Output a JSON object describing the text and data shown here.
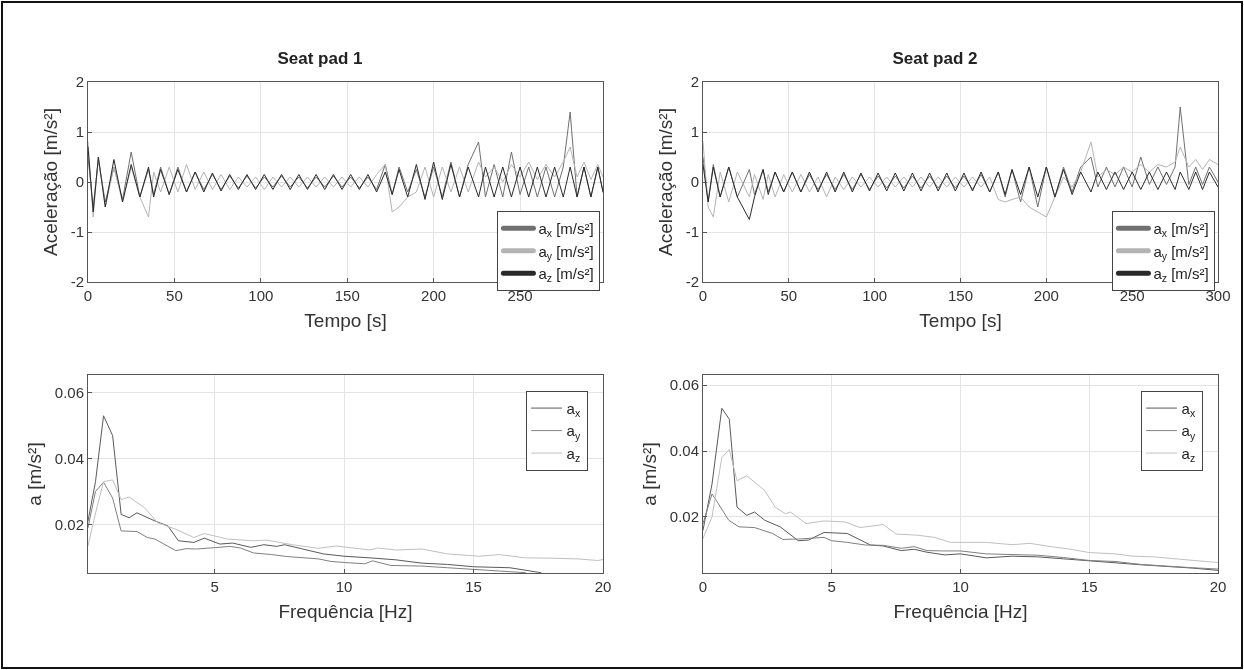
{
  "chart_data": [
    {
      "type": "line",
      "title": "Seat pad 1",
      "xlabel": "Tempo [s]",
      "ylabel": "Aceleração [m/s²]",
      "xlim": [
        0,
        298
      ],
      "xticks": [
        0,
        50,
        100,
        150,
        200,
        250
      ],
      "ylim": [
        -2,
        2
      ],
      "yticks": [
        -2,
        -1,
        0,
        1,
        2
      ],
      "grid": true,
      "legend": "right",
      "line_style": "solid",
      "x": [
        0,
        3,
        6,
        10,
        15,
        20,
        25,
        30,
        35,
        38,
        42,
        47,
        52,
        57,
        62,
        67,
        72,
        77,
        82,
        87,
        92,
        97,
        102,
        107,
        112,
        117,
        122,
        127,
        132,
        137,
        142,
        147,
        152,
        157,
        162,
        167,
        172,
        176,
        180,
        185,
        190,
        195,
        200,
        205,
        210,
        215,
        220,
        226,
        230,
        235,
        240,
        245,
        250,
        255,
        260,
        265,
        270,
        275,
        279,
        283,
        287,
        291,
        295,
        298
      ],
      "series": [
        {
          "name": "a$_{x}$ [m/s²]",
          "color": "#707070",
          "values": [
            0.5,
            -0.5,
            0.45,
            -0.4,
            0.3,
            -0.35,
            0.6,
            -0.3,
            0.25,
            -0.25,
            0.3,
            -0.25,
            0.3,
            -0.2,
            0.2,
            -0.15,
            0.15,
            -0.15,
            0.12,
            -0.12,
            0.12,
            -0.12,
            0.1,
            -0.1,
            0.12,
            -0.1,
            0.1,
            -0.12,
            0.1,
            -0.1,
            0.12,
            -0.1,
            0.1,
            -0.12,
            0.1,
            -0.15,
            0.35,
            -0.25,
            0.3,
            -0.2,
            0.25,
            -0.3,
            0.3,
            -0.3,
            0.4,
            -0.3,
            0.35,
            0.8,
            -0.3,
            0.35,
            -0.3,
            0.6,
            -0.25,
            0.3,
            -0.3,
            0.3,
            -0.3,
            0.3,
            1.4,
            -0.3,
            0.3,
            -0.3,
            0.3,
            -0.2
          ]
        },
        {
          "name": "a$_{y}$ [m/s²]",
          "color": "#b4b4b4",
          "values": [
            0.8,
            -0.7,
            0.5,
            -0.5,
            0.3,
            -0.4,
            0.3,
            -0.3,
            -0.7,
            0.2,
            -0.2,
            0.3,
            -0.2,
            0.35,
            -0.15,
            0.2,
            -0.15,
            0.15,
            -0.15,
            0.1,
            -0.1,
            0.1,
            -0.15,
            0.1,
            -0.1,
            0.1,
            -0.1,
            0.1,
            -0.1,
            0.1,
            -0.1,
            0.1,
            -0.1,
            0.1,
            -0.1,
            0.15,
            0.35,
            -0.6,
            -0.5,
            -0.3,
            -0.2,
            0.3,
            -0.3,
            0.3,
            -0.2,
            0.3,
            -0.2,
            0.4,
            0.1,
            0.3,
            0.0,
            0.35,
            0.1,
            0.4,
            0.05,
            0.35,
            0.1,
            0.4,
            0.7,
            0.1,
            0.4,
            0.05,
            0.35,
            0.1
          ]
        },
        {
          "name": "a$_{z}$ [m/s²]",
          "color": "#2a2a2a",
          "values": [
            0.7,
            -0.6,
            0.5,
            -0.5,
            0.45,
            -0.4,
            0.35,
            -0.3,
            0.3,
            -0.3,
            0.25,
            -0.25,
            0.25,
            -0.2,
            0.2,
            -0.2,
            0.18,
            -0.18,
            0.15,
            -0.15,
            0.15,
            -0.15,
            0.15,
            -0.15,
            0.15,
            -0.15,
            0.15,
            -0.15,
            0.15,
            -0.15,
            0.15,
            -0.15,
            0.15,
            -0.15,
            0.15,
            -0.2,
            0.2,
            -0.25,
            0.25,
            -0.3,
            0.35,
            -0.35,
            0.4,
            -0.35,
            0.35,
            -0.3,
            0.3,
            -0.3,
            0.3,
            -0.3,
            0.3,
            -0.3,
            0.3,
            -0.3,
            0.3,
            -0.3,
            0.3,
            -0.3,
            0.3,
            -0.3,
            0.3,
            -0.3,
            0.3,
            -0.2
          ]
        }
      ]
    },
    {
      "type": "line",
      "title": "Seat pad 2",
      "xlabel": "Tempo [s]",
      "ylabel": "Aceleração [m/s²]",
      "xlim": [
        0,
        300
      ],
      "xticks": [
        0,
        50,
        100,
        150,
        200,
        250,
        300
      ],
      "ylim": [
        -2,
        2
      ],
      "yticks": [
        -2,
        -1,
        0,
        1,
        2
      ],
      "grid": true,
      "legend": "right",
      "line_style": "solid",
      "x": [
        0,
        3,
        6,
        10,
        15,
        20,
        27,
        30,
        35,
        38,
        42,
        47,
        52,
        57,
        62,
        67,
        72,
        77,
        82,
        87,
        92,
        97,
        102,
        107,
        112,
        117,
        122,
        127,
        132,
        137,
        142,
        147,
        152,
        157,
        162,
        167,
        172,
        176,
        180,
        185,
        190,
        195,
        200,
        205,
        210,
        215,
        220,
        226,
        230,
        235,
        240,
        245,
        250,
        255,
        260,
        265,
        270,
        275,
        278,
        283,
        287,
        291,
        295,
        300
      ],
      "series": [
        {
          "name": "a$_{x}$ [m/s²]",
          "color": "#707070",
          "values": [
            0.5,
            -0.4,
            0.35,
            -0.3,
            0.3,
            -0.3,
            0.25,
            -0.25,
            0.25,
            -0.2,
            0.2,
            -0.2,
            0.2,
            -0.2,
            0.15,
            -0.15,
            0.15,
            -0.15,
            0.15,
            -0.15,
            0.15,
            -0.15,
            0.12,
            -0.12,
            0.12,
            -0.12,
            0.12,
            -0.12,
            0.12,
            -0.12,
            0.12,
            -0.12,
            0.12,
            -0.15,
            0.15,
            -0.2,
            0.2,
            -0.3,
            0.25,
            -0.4,
            0.3,
            -0.5,
            0.3,
            -0.3,
            0.3,
            -0.2,
            0.3,
            0.5,
            -0.1,
            0.3,
            -0.1,
            0.3,
            -0.1,
            0.5,
            -0.05,
            0.3,
            -0.05,
            0.3,
            1.5,
            -0.05,
            0.3,
            -0.05,
            0.3,
            0.0
          ]
        },
        {
          "name": "a$_{y}$ [m/s²]",
          "color": "#b4b4b4",
          "values": [
            0.8,
            -0.5,
            -0.7,
            0.2,
            -0.4,
            0.2,
            -0.3,
            0.15,
            -0.35,
            0.15,
            -0.3,
            0.15,
            -0.2,
            0.15,
            -0.2,
            0.1,
            -0.3,
            0.1,
            -0.15,
            0.1,
            -0.1,
            0.1,
            -0.1,
            0.1,
            -0.1,
            0.1,
            -0.1,
            0.1,
            -0.1,
            0.1,
            -0.1,
            0.1,
            -0.1,
            0.1,
            -0.1,
            0.1,
            -0.35,
            -0.4,
            -0.35,
            -0.3,
            -0.5,
            -0.6,
            -0.7,
            -0.3,
            0.1,
            -0.1,
            0.2,
            0.8,
            0.1,
            0.25,
            0.15,
            0.3,
            0.2,
            0.35,
            0.2,
            0.35,
            0.3,
            0.4,
            0.7,
            0.3,
            0.45,
            0.25,
            0.45,
            0.35
          ]
        },
        {
          "name": "a$_{z}$ [m/s²]",
          "color": "#2a2a2a",
          "values": [
            0.35,
            -0.4,
            0.3,
            -0.3,
            0.3,
            -0.3,
            -0.75,
            -0.3,
            0.25,
            -0.25,
            0.2,
            -0.2,
            0.2,
            -0.2,
            0.2,
            -0.2,
            0.2,
            -0.2,
            0.2,
            -0.2,
            0.18,
            -0.18,
            0.18,
            -0.18,
            0.18,
            -0.18,
            0.18,
            -0.18,
            0.18,
            -0.18,
            0.18,
            -0.18,
            0.18,
            -0.18,
            0.2,
            -0.2,
            0.2,
            -0.25,
            0.25,
            -0.25,
            0.3,
            -0.3,
            0.3,
            -0.3,
            0.25,
            -0.25,
            0.2,
            -0.2,
            0.2,
            -0.15,
            0.2,
            -0.15,
            0.2,
            -0.15,
            0.2,
            -0.15,
            0.2,
            -0.15,
            0.2,
            -0.15,
            0.2,
            -0.15,
            0.2,
            -0.1
          ]
        }
      ]
    },
    {
      "type": "line",
      "xlabel": "Frequência [Hz]",
      "ylabel": "a [m/s²]",
      "xlim": [
        0.11,
        20
      ],
      "xticks": [
        5,
        10,
        15,
        20
      ],
      "ylim": [
        0.0052,
        0.0654
      ],
      "yticks": [
        0.02,
        0.04,
        0.06
      ],
      "grid": true,
      "legend": "top right",
      "line_style": "solid",
      "series": [
        {
          "name": "a$_{x}$",
          "color": "#5a5a5a",
          "x": [
            0.11,
            0.4,
            0.71,
            1.06,
            1.39,
            1.7,
            2.0,
            2.7,
            3.2,
            3.6,
            4.2,
            4.6,
            5.2,
            5.7,
            6.4,
            6.9,
            7.4,
            7.7,
            8.4,
            9.2,
            10,
            11,
            12,
            13,
            14,
            15,
            16.4,
            17.6
          ],
          "values": [
            0.021,
            0.033,
            0.053,
            0.047,
            0.023,
            0.022,
            0.0235,
            0.021,
            0.0195,
            0.015,
            0.0145,
            0.0158,
            0.014,
            0.0143,
            0.013,
            0.0138,
            0.0133,
            0.0138,
            0.0125,
            0.011,
            0.0103,
            0.0098,
            0.0092,
            0.0082,
            0.0078,
            0.0071,
            0.0068,
            0.0053
          ]
        },
        {
          "name": "a$_{y}$",
          "color": "#808080",
          "x": [
            0.11,
            0.4,
            0.71,
            1.06,
            1.39,
            2.0,
            2.4,
            2.7,
            3.5,
            3.9,
            4.3,
            5.0,
            5.6,
            6.0,
            6.5,
            7.2,
            7.8,
            9.0,
            9.5,
            10,
            10.8,
            11.1,
            11.8,
            13,
            14,
            15,
            16,
            17
          ],
          "values": [
            0.019,
            0.03,
            0.0328,
            0.028,
            0.018,
            0.0178,
            0.016,
            0.0155,
            0.012,
            0.0126,
            0.0125,
            0.0129,
            0.0133,
            0.0128,
            0.0113,
            0.0108,
            0.0102,
            0.0095,
            0.0087,
            0.0084,
            0.008,
            0.0089,
            0.0075,
            0.0073,
            0.0068,
            0.0063,
            0.0058,
            0.0053
          ]
        },
        {
          "name": "a$_{z}$",
          "color": "#c0c0c0",
          "x": [
            0.11,
            0.45,
            0.71,
            1.06,
            1.39,
            1.7,
            2.3,
            2.8,
            3.5,
            4.2,
            4.6,
            5.5,
            6.5,
            7.0,
            8.0,
            9.0,
            9.7,
            11,
            11.3,
            12,
            13,
            14,
            15.2,
            16,
            17,
            18,
            19,
            19.8,
            20
          ],
          "values": [
            0.0135,
            0.025,
            0.033,
            0.0335,
            0.0275,
            0.0283,
            0.025,
            0.0205,
            0.0185,
            0.016,
            0.0172,
            0.0155,
            0.015,
            0.0152,
            0.0138,
            0.0127,
            0.0134,
            0.0122,
            0.0128,
            0.0122,
            0.0125,
            0.011,
            0.0103,
            0.0108,
            0.0098,
            0.0097,
            0.0095,
            0.009,
            0.0093
          ]
        }
      ]
    },
    {
      "type": "line",
      "xlabel": "Frequência [Hz]",
      "ylabel": "a [m/s²]",
      "xlim": [
        0,
        20
      ],
      "xticks": [
        0,
        5,
        10,
        15,
        20
      ],
      "ylim": [
        0.003,
        0.0631
      ],
      "yticks": [
        0.02,
        0.04,
        0.06
      ],
      "grid": true,
      "legend": "top right",
      "line_style": "solid",
      "series": [
        {
          "name": "a$_{x}$",
          "color": "#5a5a5a",
          "x": [
            0,
            0.35,
            0.73,
            1.02,
            1.32,
            1.7,
            2.0,
            2.4,
            3.0,
            3.7,
            4.1,
            4.7,
            5.6,
            6.5,
            7,
            7.7,
            8.2,
            8.7,
            9.4,
            10,
            11,
            12,
            13,
            14,
            15,
            16,
            17,
            18,
            19,
            20
          ],
          "values": [
            0.016,
            0.03,
            0.053,
            0.0497,
            0.023,
            0.0205,
            0.0215,
            0.019,
            0.017,
            0.0128,
            0.013,
            0.0153,
            0.015,
            0.0115,
            0.0112,
            0.0098,
            0.0102,
            0.0093,
            0.0085,
            0.0088,
            0.0076,
            0.0081,
            0.0079,
            0.0073,
            0.0067,
            0.0061,
            0.0055,
            0.005,
            0.0045,
            0.0038
          ]
        },
        {
          "name": "a$_{y}$",
          "color": "#808080",
          "x": [
            0,
            0.35,
            0.6,
            1.0,
            1.4,
            2.0,
            2.7,
            3.1,
            3.7,
            4.7,
            5.0,
            5.6,
            6.3,
            7,
            7.7,
            8.2,
            8.7,
            9.3,
            10,
            11,
            12,
            13,
            14,
            15,
            16,
            17,
            18,
            19,
            20
          ],
          "values": [
            0.018,
            0.027,
            0.024,
            0.019,
            0.017,
            0.0168,
            0.015,
            0.0132,
            0.0133,
            0.0138,
            0.0128,
            0.0123,
            0.0115,
            0.0114,
            0.0105,
            0.011,
            0.0098,
            0.0097,
            0.0097,
            0.0088,
            0.0086,
            0.0084,
            0.0077,
            0.0068,
            0.0065,
            0.0056,
            0.0051,
            0.0046,
            0.0042
          ]
        },
        {
          "name": "a$_{z}$",
          "color": "#c0c0c0",
          "x": [
            0,
            0.35,
            0.73,
            1.02,
            1.32,
            1.7,
            2.4,
            2.8,
            3.2,
            3.4,
            4.0,
            4.7,
            5.5,
            6.1,
            7,
            7.5,
            8.3,
            9,
            9.6,
            11,
            12,
            12.7,
            13.5,
            14.2,
            15,
            16,
            16.7,
            17.5,
            18.5,
            19.5,
            20
          ],
          "values": [
            0.0135,
            0.02,
            0.038,
            0.0405,
            0.031,
            0.0325,
            0.028,
            0.023,
            0.021,
            0.0215,
            0.018,
            0.0188,
            0.0185,
            0.0168,
            0.0177,
            0.0148,
            0.0145,
            0.0138,
            0.0123,
            0.0123,
            0.0116,
            0.012,
            0.011,
            0.0103,
            0.0092,
            0.0088,
            0.0081,
            0.0079,
            0.0072,
            0.0065,
            0.0062
          ]
        }
      ]
    }
  ]
}
